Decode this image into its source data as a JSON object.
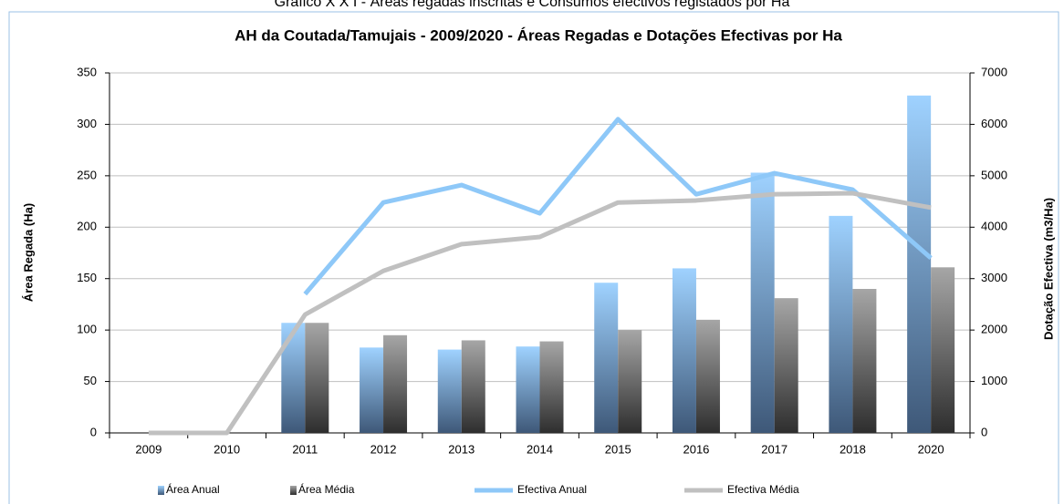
{
  "caption": "Gráfico X X I - Áreas regadas inscritas e Consumos efectivos registados por Ha",
  "chart_data": {
    "type": "bar_line",
    "title": "AH da Coutada/Tamujais - 2009/2020  - Áreas Regadas e Dotações Efectivas por Ha",
    "y_label": "Área Regada (Ha)",
    "y2_label": "Dotação Efectiva (m3/Ha)",
    "categories": [
      "2009",
      "2010",
      "2011",
      "2012",
      "2013",
      "2014",
      "2015",
      "2016",
      "2017",
      "2018",
      "2020"
    ],
    "ylim": [
      0,
      350
    ],
    "yticks": [
      0,
      50,
      100,
      150,
      200,
      250,
      300,
      350
    ],
    "y2lim": [
      0,
      7000
    ],
    "y2ticks": [
      0,
      1000,
      2000,
      3000,
      4000,
      5000,
      6000,
      7000
    ],
    "grid": true,
    "legend": "bottom",
    "series": [
      {
        "name": "Área Anual",
        "kind": "bar",
        "color": "#9fd2ff",
        "values": [
          0,
          0,
          107,
          83,
          81,
          84,
          146,
          160,
          253,
          211,
          328
        ]
      },
      {
        "name": "Área Média",
        "kind": "bar",
        "color": "#a6a6a6",
        "values": [
          0,
          0,
          107,
          95,
          90,
          89,
          100,
          110,
          131,
          140,
          161
        ]
      },
      {
        "name": "Efectiva Anual",
        "kind": "line",
        "axis": "y2",
        "color": "#8ec8f8",
        "values": [
          null,
          null,
          2700,
          4480,
          4820,
          4270,
          6100,
          4640,
          5050,
          4730,
          3400
        ]
      },
      {
        "name": "Efectiva Média",
        "kind": "line",
        "axis": "y2",
        "color": "#c0c0c0",
        "values": [
          0,
          0,
          2300,
          3150,
          3670,
          3810,
          4480,
          4520,
          4640,
          4660,
          4380
        ]
      }
    ]
  }
}
